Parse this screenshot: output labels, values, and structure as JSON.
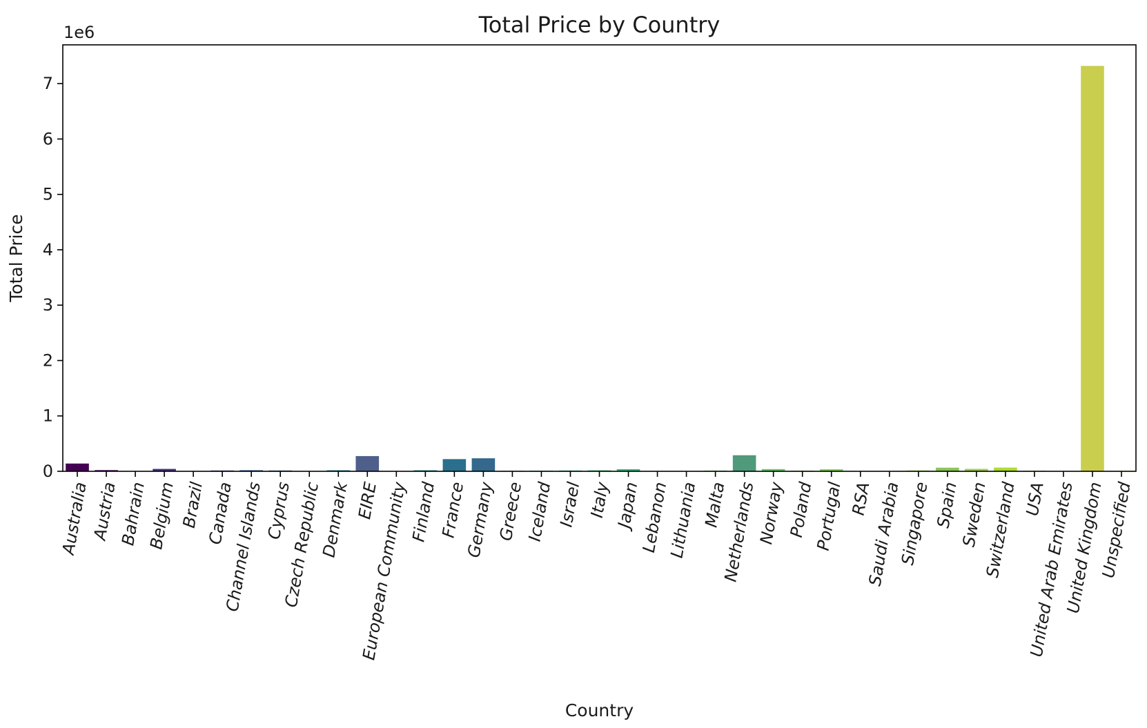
{
  "chart_data": {
    "type": "bar",
    "title": "Total Price by Country",
    "xlabel": "Country",
    "ylabel": "Total Price",
    "y_offset_label": "1e6",
    "y_ticks": [
      "0",
      "1",
      "2",
      "3",
      "4",
      "5",
      "6",
      "7"
    ],
    "ylim": [
      0,
      7700000
    ],
    "grid": false,
    "legend": "none",
    "colormap": "viridis",
    "categories": [
      "Australia",
      "Austria",
      "Bahrain",
      "Belgium",
      "Brazil",
      "Canada",
      "Channel Islands",
      "Cyprus",
      "Czech Republic",
      "Denmark",
      "EIRE",
      "European Community",
      "Finland",
      "France",
      "Germany",
      "Greece",
      "Iceland",
      "Israel",
      "Italy",
      "Japan",
      "Lebanon",
      "Lithuania",
      "Malta",
      "Netherlands",
      "Norway",
      "Poland",
      "Portugal",
      "RSA",
      "Saudi Arabia",
      "Singapore",
      "Spain",
      "Sweden",
      "Switzerland",
      "USA",
      "United Arab Emirates",
      "United Kingdom",
      "Unspecified"
    ],
    "values": [
      140000,
      22000,
      1000,
      43000,
      1200,
      15000,
      20000,
      15000,
      800,
      19000,
      275000,
      1200,
      19000,
      220000,
      235000,
      9000,
      11000,
      14000,
      17000,
      38000,
      2000,
      1600,
      13000,
      290000,
      40000,
      12000,
      37000,
      1000,
      2000,
      15000,
      65000,
      44000,
      67000,
      12000,
      3000,
      7320000,
      9000
    ],
    "colors": [
      "#440154",
      "#461163",
      "#472071",
      "#462f7c",
      "#423d84",
      "#3e4a89",
      "#39578b",
      "#34638d",
      "#2f6e8e",
      "#2b798e",
      "#4f5f8c",
      "#26858e",
      "#258f8d",
      "#2a6f8e",
      "#34688d",
      "#21a685",
      "#22a884",
      "#29b37b",
      "#2db779",
      "#35b779",
      "#3ebc74",
      "#48c16e",
      "#52c569",
      "#4f9a7a",
      "#5ec962",
      "#6ccd5a",
      "#7ad151",
      "#89d548",
      "#97d83f",
      "#a5db36",
      "#8bc45a",
      "#a0cf4c",
      "#addc30",
      "#bcdf27",
      "#cbe11e",
      "#c9ce4e",
      "#d8e219"
    ]
  }
}
